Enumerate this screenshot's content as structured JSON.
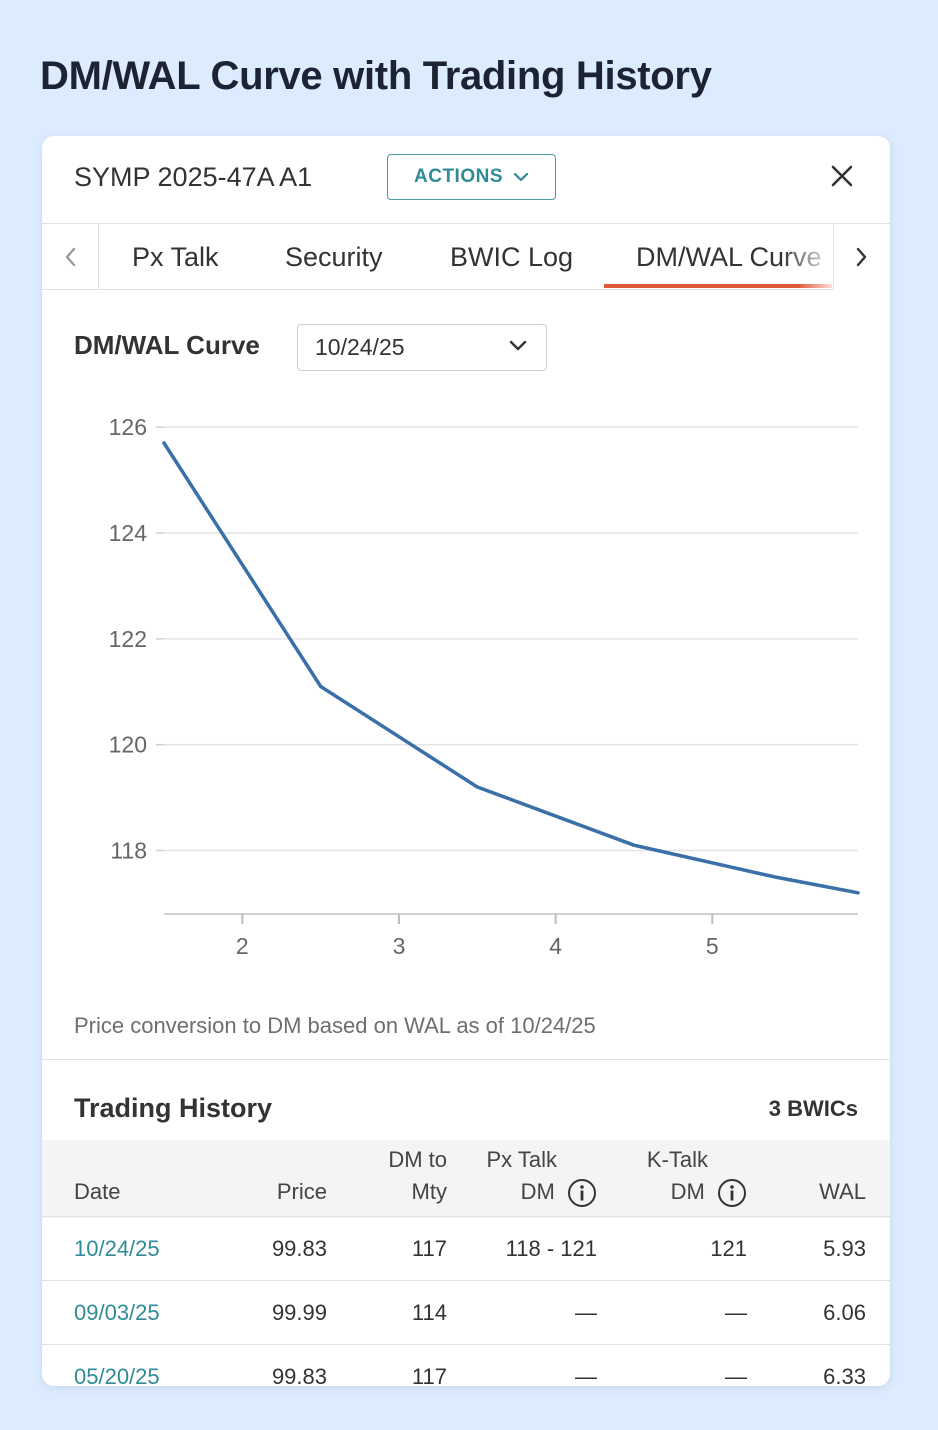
{
  "page_title": "DM/WAL Curve with Trading History",
  "header": {
    "security_name": "SYMP 2025-47A A1",
    "actions_label": "ACTIONS"
  },
  "tabs": [
    {
      "label": "Px Talk",
      "active": false
    },
    {
      "label": "Security",
      "active": false
    },
    {
      "label": "BWIC Log",
      "active": false
    },
    {
      "label": "DM/WAL Curve",
      "active": true
    }
  ],
  "curve_section": {
    "label": "DM/WAL Curve",
    "selected_date": "10/24/25",
    "footnote": "Price conversion to DM based on WAL as of 10/24/25"
  },
  "chart_data": {
    "type": "line",
    "title": "",
    "xlabel": "",
    "ylabel": "",
    "xlim": [
      1.5,
      5.93
    ],
    "ylim": [
      116.8,
      126.4
    ],
    "x_ticks": [
      2,
      3,
      4,
      5
    ],
    "y_ticks": [
      118,
      120,
      122,
      124,
      126
    ],
    "grid": true,
    "line_color": "#3a6fa8",
    "series": [
      {
        "x": [
          1.5,
          2.5,
          3.5,
          4.5,
          5.4,
          5.93
        ],
        "y": [
          125.7,
          121.1,
          119.2,
          118.1,
          117.5,
          117.2
        ]
      }
    ]
  },
  "trading_history": {
    "title": "Trading History",
    "count_label": "3 BWICs",
    "columns": {
      "date": "Date",
      "price": "Price",
      "dm_line1": "DM to",
      "dm_line2": "Mty",
      "pxtalk_line1": "Px Talk",
      "pxtalk_line2": "DM",
      "ktalk_line1": "K-Talk",
      "ktalk_line2": "DM",
      "wal": "WAL"
    },
    "rows": [
      {
        "date": "10/24/25",
        "price": "99.83",
        "dm": "117",
        "pxtalk": "118 - 121",
        "ktalk": "121",
        "wal": "5.93"
      },
      {
        "date": "09/03/25",
        "price": "99.99",
        "dm": "114",
        "pxtalk": "—",
        "ktalk": "—",
        "wal": "6.06"
      },
      {
        "date": "05/20/25",
        "price": "99.83",
        "dm": "117",
        "pxtalk": "—",
        "ktalk": "—",
        "wal": "6.33"
      }
    ]
  }
}
